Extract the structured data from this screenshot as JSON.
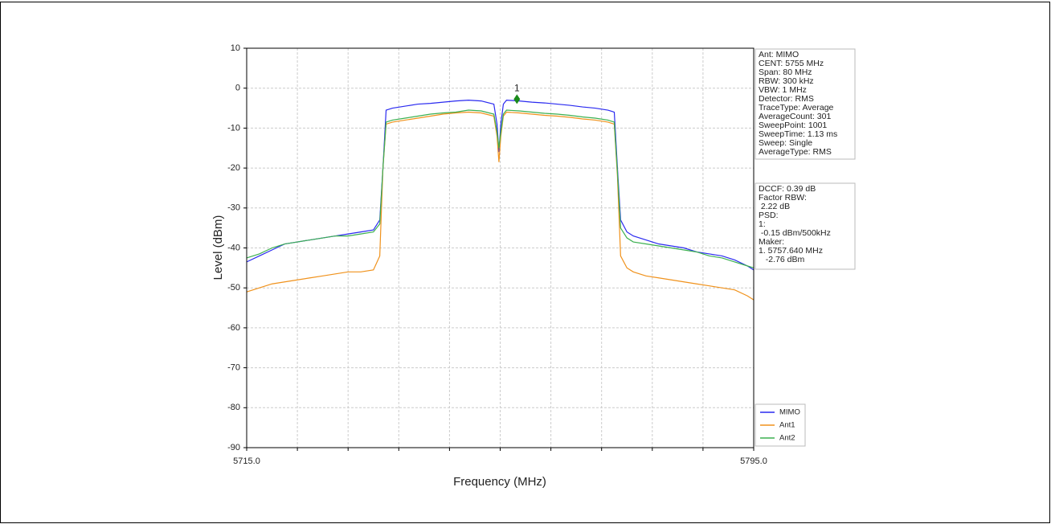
{
  "chart_data": {
    "type": "line",
    "xlabel": "Frequency (MHz)",
    "ylabel": "Level (dBm)",
    "xlim": [
      5715,
      5795
    ],
    "xticks": [
      {
        "value": 5715,
        "label": "5715.0"
      },
      {
        "value": 5795,
        "label": "5795.0"
      }
    ],
    "x_grid": [
      5723,
      5731,
      5739,
      5747,
      5755,
      5763,
      5771,
      5779,
      5787
    ],
    "ylim": [
      -90,
      10
    ],
    "yticks": [
      10,
      0,
      -10,
      -20,
      -30,
      -40,
      -50,
      -60,
      -70,
      -80,
      -90
    ],
    "grid": true,
    "legend": "lower right",
    "x": [
      5715,
      5717,
      5719,
      5721,
      5723,
      5725,
      5727,
      5729,
      5731,
      5733,
      5735,
      5736,
      5736.5,
      5737,
      5738,
      5740,
      5742,
      5744,
      5746,
      5748,
      5750,
      5752,
      5754,
      5754.5,
      5754.8,
      5755.1,
      5755.5,
      5756,
      5758,
      5760,
      5762,
      5764,
      5766,
      5768,
      5770,
      5772,
      5773,
      5773.5,
      5774,
      5775,
      5776,
      5778,
      5780,
      5782,
      5784,
      5786,
      5788,
      5790,
      5792,
      5794,
      5795
    ],
    "series": [
      {
        "name": "MIMO",
        "color": "#2a2af0",
        "values": [
          -43.5,
          -42,
          -40.5,
          -39,
          -38.5,
          -38,
          -37.5,
          -37,
          -36.5,
          -36,
          -35.5,
          -33,
          -20,
          -5.5,
          -5,
          -4.5,
          -4,
          -3.8,
          -3.5,
          -3.2,
          -3,
          -3.2,
          -4,
          -9,
          -16,
          -9,
          -4,
          -3,
          -3.2,
          -3.5,
          -3.7,
          -4,
          -4.3,
          -4.7,
          -5,
          -5.5,
          -6,
          -20,
          -33,
          -36,
          -37,
          -38,
          -39,
          -39.5,
          -40,
          -41,
          -41.5,
          -42,
          -43,
          -44.5,
          -45.5
        ]
      },
      {
        "name": "Ant1",
        "color": "#f0921c",
        "values": [
          -51,
          -50,
          -49,
          -48.5,
          -48,
          -47.5,
          -47,
          -46.5,
          -46,
          -46,
          -45.5,
          -42,
          -20,
          -9,
          -8.5,
          -8,
          -7.5,
          -7,
          -6.5,
          -6.2,
          -6,
          -6.2,
          -7,
          -12,
          -18.5,
          -12,
          -7,
          -6,
          -6.2,
          -6.5,
          -6.8,
          -7,
          -7.3,
          -7.7,
          -8,
          -8.5,
          -9,
          -22,
          -42,
          -45,
          -46,
          -47,
          -47.5,
          -48,
          -48.5,
          -49,
          -49.5,
          -50,
          -50.5,
          -52,
          -53
        ]
      },
      {
        "name": "Ant2",
        "color": "#3cb050",
        "values": [
          -42.5,
          -41.5,
          -40,
          -39,
          -38.5,
          -38,
          -37.5,
          -37,
          -37,
          -36.5,
          -36,
          -34,
          -20,
          -8.5,
          -8,
          -7.5,
          -7,
          -6.5,
          -6.2,
          -6,
          -5.5,
          -5.7,
          -6.5,
          -11,
          -15,
          -11,
          -6.5,
          -5.5,
          -5.7,
          -6,
          -6.3,
          -6.5,
          -6.8,
          -7.2,
          -7.5,
          -8,
          -8.5,
          -21,
          -35,
          -37.5,
          -38.5,
          -39,
          -39.5,
          -40,
          -40.5,
          -41,
          -42,
          -42.5,
          -43.5,
          -44.5,
          -45
        ]
      }
    ],
    "marker": {
      "x": 5757.64,
      "y": -2.76,
      "label": "1",
      "color": "#1a8a1a"
    },
    "info_box": [
      "Ant: MIMO",
      "CENT: 5755 MHz",
      "Span: 80 MHz",
      "RBW: 300 kHz",
      "VBW: 1 MHz",
      "Detector: RMS",
      "TraceType: Average",
      "AverageCount: 301",
      "SweepPoint: 1001",
      "SweepTime: 1.13 ms",
      "Sweep: Single",
      "AverageType: RMS"
    ],
    "result_box": [
      "DCCF: 0.39 dB",
      "Factor RBW:",
      " 2.22 dB",
      "PSD:",
      "1:",
      " -0.15 dBm/500kHz",
      "Maker:",
      "1. 5757.640 MHz",
      "   -2.76 dBm"
    ]
  }
}
